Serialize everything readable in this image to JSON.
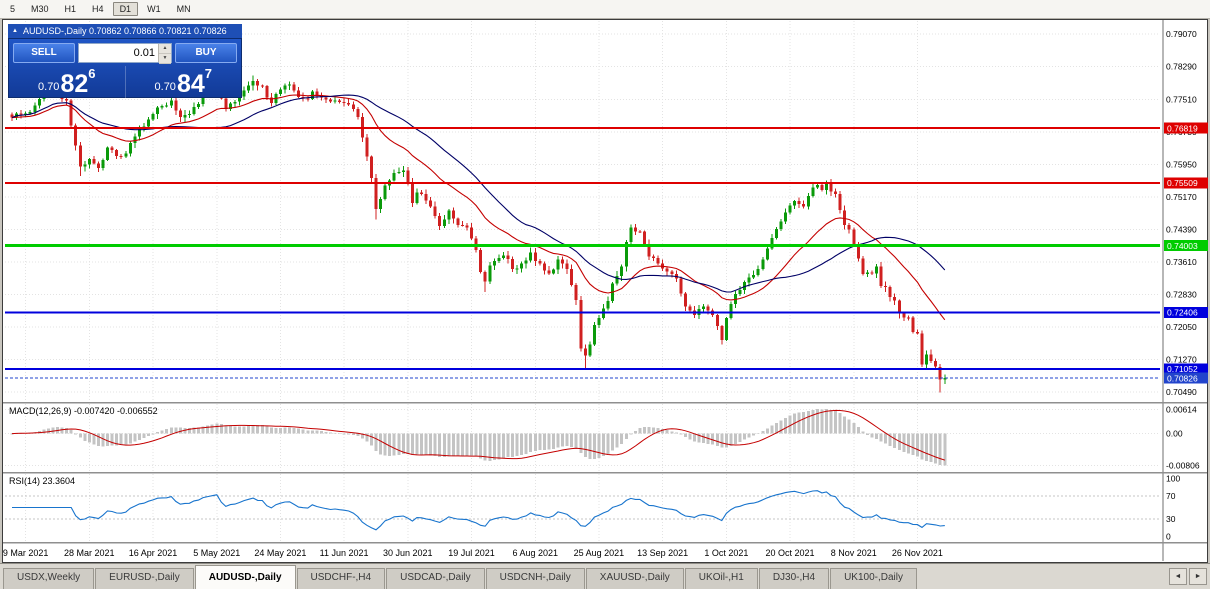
{
  "toolbar": {
    "timeframes": [
      {
        "label": "5",
        "active": false
      },
      {
        "label": "M30",
        "active": false
      },
      {
        "label": "H1",
        "active": false
      },
      {
        "label": "H4",
        "active": false
      },
      {
        "label": "D1",
        "active": true
      },
      {
        "label": "W1",
        "active": false
      },
      {
        "label": "MN",
        "active": false
      }
    ]
  },
  "chart": {
    "title_arrow": "▲",
    "title": "AUDUSD-,Daily 0.70862 0.70866 0.70821 0.70826",
    "one_click": {
      "sell_label": "SELL",
      "buy_label": "BUY",
      "lot": "0.01",
      "spin_up": "▲",
      "spin_down": "▼",
      "bid_prefix": "0.70",
      "bid_big": "82",
      "bid_sup": "6",
      "ask_prefix": "0.70",
      "ask_big": "84",
      "ask_sup": "7"
    }
  },
  "chart_data": {
    "type": "candlestick",
    "symbol": "AUDUSD-",
    "timeframe": "Daily",
    "ohlc_display": {
      "open": "0.70862",
      "high": "0.70866",
      "low": "0.70821",
      "close": "0.70826"
    },
    "bars": 206,
    "bar_spacing": 4.55,
    "up_color": "#0A9A0A",
    "down_color": "#D02020",
    "price_axis": {
      "min": 0.7028,
      "max": 0.7941,
      "ticks": [
        0.7907,
        0.7829,
        0.7751,
        0.7673,
        0.7595,
        0.7517,
        0.7439,
        0.7361,
        0.7283,
        0.7205,
        0.7127,
        0.7049
      ]
    },
    "close_anchors": [
      [
        0,
        0.7707
      ],
      [
        3,
        0.7717
      ],
      [
        6,
        0.7752
      ],
      [
        9,
        0.7788
      ],
      [
        12,
        0.7748
      ],
      [
        14,
        0.764
      ],
      [
        15,
        0.759
      ],
      [
        17,
        0.7608
      ],
      [
        19,
        0.7586
      ],
      [
        21,
        0.7635
      ],
      [
        24,
        0.7614
      ],
      [
        27,
        0.7662
      ],
      [
        30,
        0.7703
      ],
      [
        33,
        0.7735
      ],
      [
        35,
        0.7748
      ],
      [
        37,
        0.7708
      ],
      [
        40,
        0.7733
      ],
      [
        43,
        0.777
      ],
      [
        45,
        0.7788
      ],
      [
        47,
        0.7728
      ],
      [
        49,
        0.7745
      ],
      [
        51,
        0.7772
      ],
      [
        53,
        0.7795
      ],
      [
        55,
        0.7783
      ],
      [
        57,
        0.7742
      ],
      [
        59,
        0.7775
      ],
      [
        61,
        0.7786
      ],
      [
        63,
        0.7757
      ],
      [
        66,
        0.777
      ],
      [
        69,
        0.775
      ],
      [
        72,
        0.7744
      ],
      [
        74,
        0.7738
      ],
      [
        76,
        0.7708
      ],
      [
        78,
        0.7614
      ],
      [
        79,
        0.7562
      ],
      [
        80,
        0.7488
      ],
      [
        82,
        0.7545
      ],
      [
        84,
        0.7574
      ],
      [
        86,
        0.758
      ],
      [
        88,
        0.7502
      ],
      [
        90,
        0.7524
      ],
      [
        92,
        0.7494
      ],
      [
        94,
        0.7447
      ],
      [
        96,
        0.7484
      ],
      [
        98,
        0.745
      ],
      [
        100,
        0.7444
      ],
      [
        102,
        0.739
      ],
      [
        103,
        0.7337
      ],
      [
        104,
        0.7314
      ],
      [
        106,
        0.7364
      ],
      [
        108,
        0.7377
      ],
      [
        110,
        0.7344
      ],
      [
        112,
        0.7357
      ],
      [
        114,
        0.7384
      ],
      [
        116,
        0.7358
      ],
      [
        118,
        0.7334
      ],
      [
        120,
        0.7367
      ],
      [
        122,
        0.7344
      ],
      [
        124,
        0.727
      ],
      [
        125,
        0.7154
      ],
      [
        126,
        0.7137
      ],
      [
        128,
        0.721
      ],
      [
        130,
        0.725
      ],
      [
        132,
        0.731
      ],
      [
        134,
        0.735
      ],
      [
        136,
        0.7444
      ],
      [
        138,
        0.7434
      ],
      [
        140,
        0.7374
      ],
      [
        142,
        0.7358
      ],
      [
        144,
        0.7338
      ],
      [
        146,
        0.7322
      ],
      [
        148,
        0.7254
      ],
      [
        150,
        0.7234
      ],
      [
        152,
        0.7254
      ],
      [
        154,
        0.7234
      ],
      [
        156,
        0.7174
      ],
      [
        158,
        0.726
      ],
      [
        160,
        0.7294
      ],
      [
        162,
        0.7324
      ],
      [
        164,
        0.7344
      ],
      [
        166,
        0.7394
      ],
      [
        168,
        0.744
      ],
      [
        170,
        0.748
      ],
      [
        172,
        0.7507
      ],
      [
        174,
        0.7494
      ],
      [
        176,
        0.754
      ],
      [
        178,
        0.7534
      ],
      [
        179,
        0.755
      ],
      [
        181,
        0.7524
      ],
      [
        183,
        0.745
      ],
      [
        185,
        0.7404
      ],
      [
        187,
        0.7332
      ],
      [
        189,
        0.7334
      ],
      [
        190,
        0.735
      ],
      [
        191,
        0.7304
      ],
      [
        193,
        0.7277
      ],
      [
        195,
        0.7238
      ],
      [
        197,
        0.7228
      ],
      [
        199,
        0.719
      ],
      [
        200,
        0.7116
      ],
      [
        201,
        0.714
      ],
      [
        202,
        0.7124
      ],
      [
        203,
        0.711
      ],
      [
        204,
        0.708
      ],
      [
        205,
        0.70826
      ]
    ],
    "wick_overrides": {
      "15": {
        "low": 0.7567
      },
      "53": {
        "high": 0.7808
      },
      "80": {
        "low": 0.7463
      },
      "104": {
        "low": 0.7289
      },
      "126": {
        "low": 0.7106
      },
      "179": {
        "high": 0.7556
      },
      "204": {
        "low": 0.7048
      }
    },
    "levels": [
      {
        "price": 0.76819,
        "color": "#DE0000",
        "width": 2
      },
      {
        "price": 0.75509,
        "color": "#DE0000",
        "width": 2
      },
      {
        "price": 0.74003,
        "color": "#00CC00",
        "width": 3
      },
      {
        "price": 0.72406,
        "color": "#0000DD",
        "width": 2
      },
      {
        "price": 0.71052,
        "color": "#0000DD",
        "width": 2
      }
    ],
    "current_price": {
      "value": 0.70826,
      "color": "#2244CC"
    },
    "ma": [
      {
        "period": 21,
        "method": "ema",
        "color": "#C40000"
      },
      {
        "period": 34,
        "method": "sma",
        "color": "#000066"
      }
    ],
    "date_labels": [
      {
        "index": 3,
        "label": "9 Mar 2021"
      },
      {
        "index": 17,
        "label": "28 Mar 2021"
      },
      {
        "index": 31,
        "label": "16 Apr 2021"
      },
      {
        "index": 45,
        "label": "5 May 2021"
      },
      {
        "index": 59,
        "label": "24 May 2021"
      },
      {
        "index": 73,
        "label": "11 Jun 2021"
      },
      {
        "index": 87,
        "label": "30 Jun 2021"
      },
      {
        "index": 101,
        "label": "19 Jul 2021"
      },
      {
        "index": 115,
        "label": "6 Aug 2021"
      },
      {
        "index": 129,
        "label": "25 Aug 2021"
      },
      {
        "index": 143,
        "label": "13 Sep 2021"
      },
      {
        "index": 157,
        "label": "1 Oct 2021"
      },
      {
        "index": 171,
        "label": "20 Oct 2021"
      },
      {
        "index": 185,
        "label": "8 Nov 2021"
      },
      {
        "index": 199,
        "label": "26 Nov 2021"
      }
    ],
    "macd": {
      "label": "MACD(12,26,9) -0.007420 -0.006552",
      "fast": 12,
      "slow": 26,
      "signal": 9,
      "range": [
        -0.0095,
        0.0075
      ],
      "ticks": [
        {
          "value": 0.00614,
          "label": "0.00614"
        },
        {
          "value": 0,
          "label": "0.00"
        },
        {
          "value": -0.00806,
          "label": "-0.00806"
        }
      ],
      "hist_color": "#C4C4C4",
      "signal_color": "#C40000"
    },
    "rsi": {
      "label": "RSI(14) 23.3604",
      "period": 14,
      "levels": [
        70,
        30
      ],
      "ticks": [
        {
          "value": 100,
          "label": "100"
        },
        {
          "value": 70,
          "label": "70"
        },
        {
          "value": 30,
          "label": "30"
        },
        {
          "value": 0,
          "label": "0"
        }
      ],
      "color": "#1874CD",
      "range": [
        0,
        100
      ]
    }
  },
  "tabs": {
    "items": [
      {
        "label": "USDX,Weekly",
        "active": false
      },
      {
        "label": "EURUSD-,Daily",
        "active": false
      },
      {
        "label": "AUDUSD-,Daily",
        "active": true
      },
      {
        "label": "USDCHF-,H4",
        "active": false
      },
      {
        "label": "USDCAD-,Daily",
        "active": false
      },
      {
        "label": "USDCNH-,Daily",
        "active": false
      },
      {
        "label": "XAUUSD-,Daily",
        "active": false
      },
      {
        "label": "UKOil-,H1",
        "active": false
      },
      {
        "label": "DJ30-,H4",
        "active": false
      },
      {
        "label": "UK100-,Daily",
        "active": false
      }
    ],
    "nav_left": "◄",
    "nav_right": "►"
  }
}
